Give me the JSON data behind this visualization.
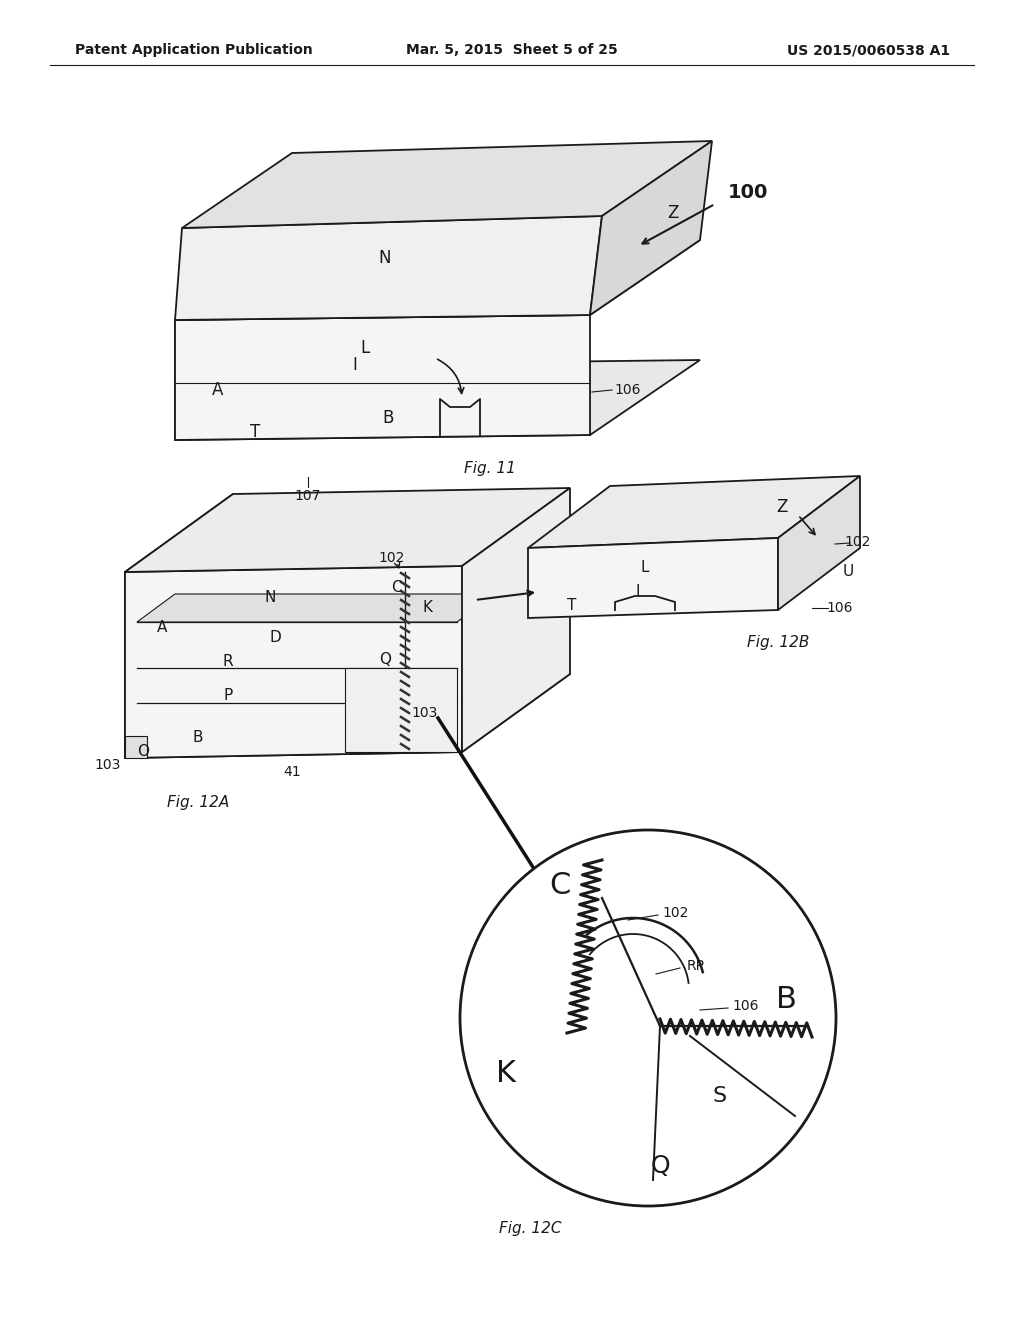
{
  "header_left": "Patent Application Publication",
  "header_mid": "Mar. 5, 2015  Sheet 5 of 25",
  "header_right": "US 2015/0060538 A1",
  "background_color": "#ffffff",
  "line_color": "#1a1a1a",
  "fig11_caption": "Fig. 11",
  "fig12a_caption": "Fig. 12A",
  "fig12b_caption": "Fig. 12B",
  "fig12c_caption": "Fig. 12C",
  "ref_100": "100",
  "ref_107": "107",
  "ref_41": "41",
  "label_Z_fig11": "Z",
  "label_Z_fig12": "Z",
  "label_N_fig11": "N",
  "label_L_fig11": "L",
  "label_I_fig11": "I",
  "label_A_fig11": "A",
  "label_T_fig11": "T",
  "label_B_fig11": "B",
  "label_N_fig12a": "N",
  "label_D_fig12a": "D",
  "label_A_fig12a": "A",
  "label_C_fig12a": "C",
  "label_K_fig12a": "K",
  "label_R_fig12a": "R",
  "label_Q_fig12a": "Q",
  "label_O_fig12a": "O",
  "label_P_fig12a": "P",
  "label_B_fig12a": "B",
  "label_L_fig12b": "L",
  "label_I_fig12b": "I",
  "label_T_fig12b": "T",
  "label_U_fig12b": "U",
  "label_C_fig12c": "C",
  "label_K_fig12c": "K",
  "label_B_fig12c": "B",
  "label_S_fig12c": "S",
  "label_Q_fig12c": "Q",
  "label_RP_fig12c": "RP"
}
